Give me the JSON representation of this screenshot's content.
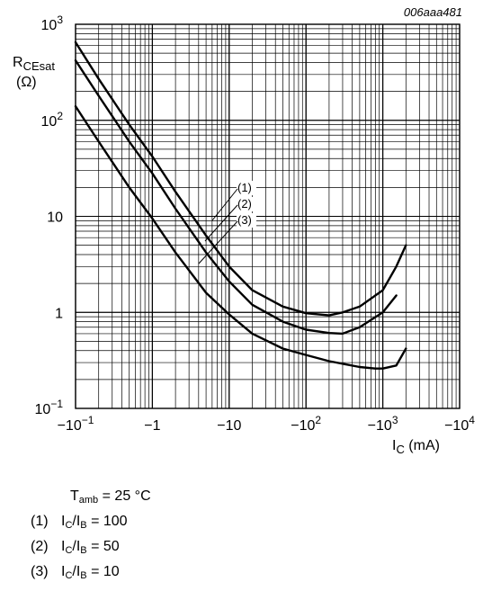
{
  "figure_id": "006aaa481",
  "chart_data": {
    "type": "line",
    "x_scale": "log",
    "y_scale": "log",
    "x_ticks": [
      "−10^−1",
      "−1",
      "−10",
      "−10^2",
      "−10^3",
      "−10^4"
    ],
    "y_ticks": [
      "10^3",
      "10^2",
      "10",
      "1",
      "10^−1"
    ],
    "xlim": [
      -0.1,
      -10000
    ],
    "ylim": [
      0.1,
      1000
    ],
    "xlabel": {
      "sym": "I",
      "sub": "C",
      "unit": " (mA)"
    },
    "ylabel": {
      "sym": "R",
      "sub": "CEsat",
      "unit": "(Ω)"
    },
    "grid": true,
    "series": [
      {
        "name": "(1)",
        "x": [
          -0.1,
          -0.2,
          -0.5,
          -1,
          -2,
          -5,
          -10,
          -20,
          -50,
          -100,
          -200,
          -300,
          -500,
          -1000,
          -1500,
          -2000
        ],
        "y": [
          650,
          270,
          90,
          42,
          18,
          6.3,
          3.0,
          1.7,
          1.15,
          0.98,
          0.93,
          1.0,
          1.15,
          1.7,
          3.0,
          5.0
        ]
      },
      {
        "name": "(2)",
        "x": [
          -0.1,
          -0.2,
          -0.5,
          -1,
          -2,
          -5,
          -10,
          -20,
          -50,
          -100,
          -200,
          -300,
          -500,
          -1000,
          -1500
        ],
        "y": [
          420,
          180,
          60,
          28,
          12,
          4.2,
          2.1,
          1.2,
          0.8,
          0.66,
          0.61,
          0.6,
          0.7,
          1.0,
          1.5
        ]
      },
      {
        "name": "(3)",
        "x": [
          -0.1,
          -0.2,
          -0.5,
          -1,
          -2,
          -5,
          -10,
          -20,
          -50,
          -100,
          -200,
          -500,
          -800,
          -1000,
          -1500,
          -2000
        ],
        "y": [
          140,
          60,
          20,
          9.5,
          4.2,
          1.6,
          0.95,
          0.6,
          0.42,
          0.36,
          0.31,
          0.27,
          0.26,
          0.26,
          0.28,
          0.42
        ]
      }
    ]
  },
  "legend": {
    "condition": {
      "sym": "T",
      "sub": "amb",
      "rest": " = 25 °C"
    },
    "items": [
      {
        "num": "(1)",
        "a": "I",
        "asub": "C",
        "b": "/I",
        "bsub": "B",
        "rest": " = 100"
      },
      {
        "num": "(2)",
        "a": "I",
        "asub": "C",
        "b": "/I",
        "bsub": "B",
        "rest": " = 50"
      },
      {
        "num": "(3)",
        "a": "I",
        "asub": "C",
        "b": "/I",
        "bsub": "B",
        "rest": " = 10"
      }
    ]
  }
}
